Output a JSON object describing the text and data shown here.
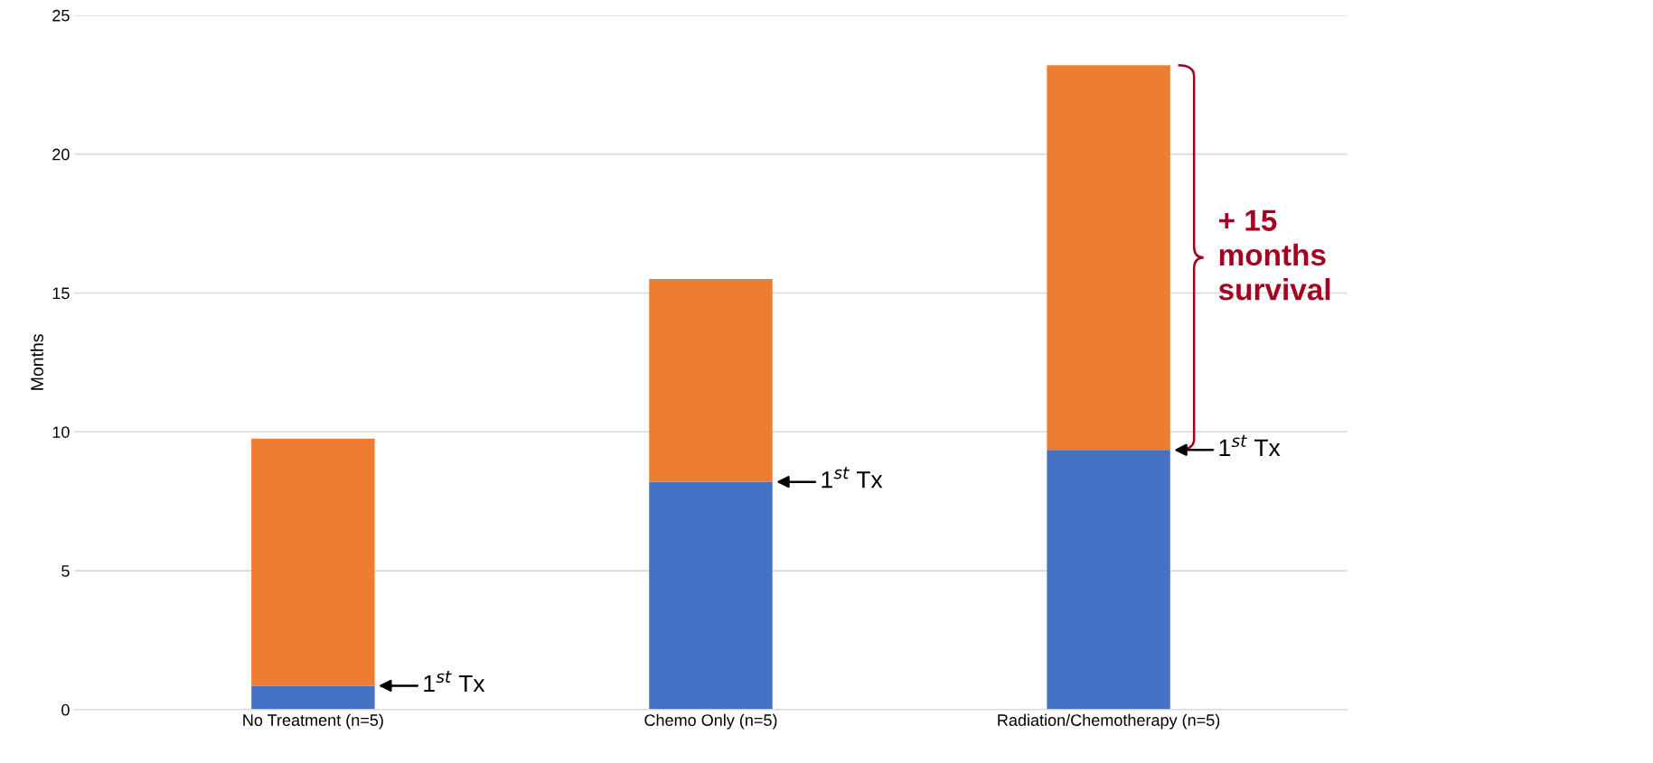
{
  "chart_data": {
    "type": "bar",
    "stacked": true,
    "ylabel": "Months",
    "categories": [
      "No Treatment (n=5)",
      "Chemo Only (n=5)",
      "Radiation/Chemotherapy (n=5)"
    ],
    "series": [
      {
        "color": "#4472c4",
        "values": [
          0.86,
          8.2,
          9.35
        ]
      },
      {
        "color": "#ed7d31",
        "values": [
          8.9,
          7.3,
          13.85
        ]
      }
    ],
    "ylim": [
      0,
      25
    ],
    "yticks": [
      0,
      5,
      10,
      15,
      20,
      25
    ],
    "grid": "y",
    "legend": false,
    "annotations": [
      "1$^{st}$ Tx",
      "1$^{st}$ Tx",
      "1$^{st}$ Tx",
      "+ 15\nmonths\nsurvival"
    ]
  }
}
